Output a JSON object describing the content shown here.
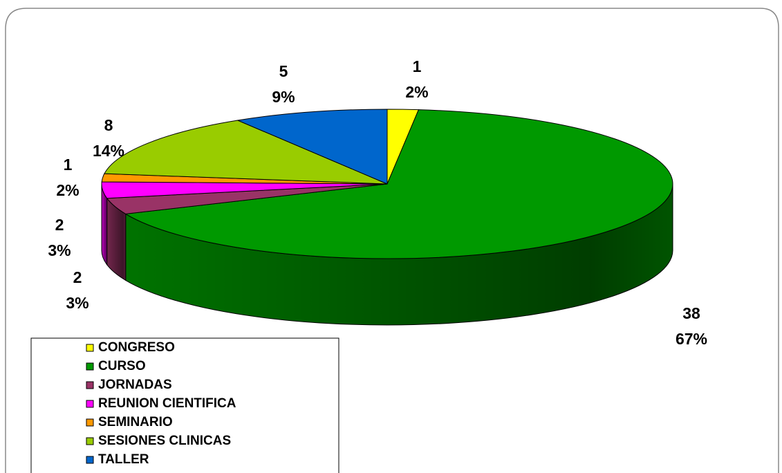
{
  "chart_data": {
    "type": "pie3d",
    "categories": [
      "CONGRESO",
      "CURSO",
      "JORNADAS",
      "REUNION CIENTIFICA",
      "SEMINARIO",
      "SESIONES CLINICAS",
      "TALLER"
    ],
    "values": [
      1,
      38,
      2,
      2,
      1,
      8,
      5
    ],
    "percent_labels": [
      "2%",
      "67%",
      "3%",
      "3%",
      "2%",
      "14%",
      "9%"
    ],
    "colors": [
      "#ffff00",
      "#009900",
      "#993366",
      "#ff00ff",
      "#ff9900",
      "#99cc00",
      "#0066cc"
    ],
    "legend": "bottom-left"
  }
}
